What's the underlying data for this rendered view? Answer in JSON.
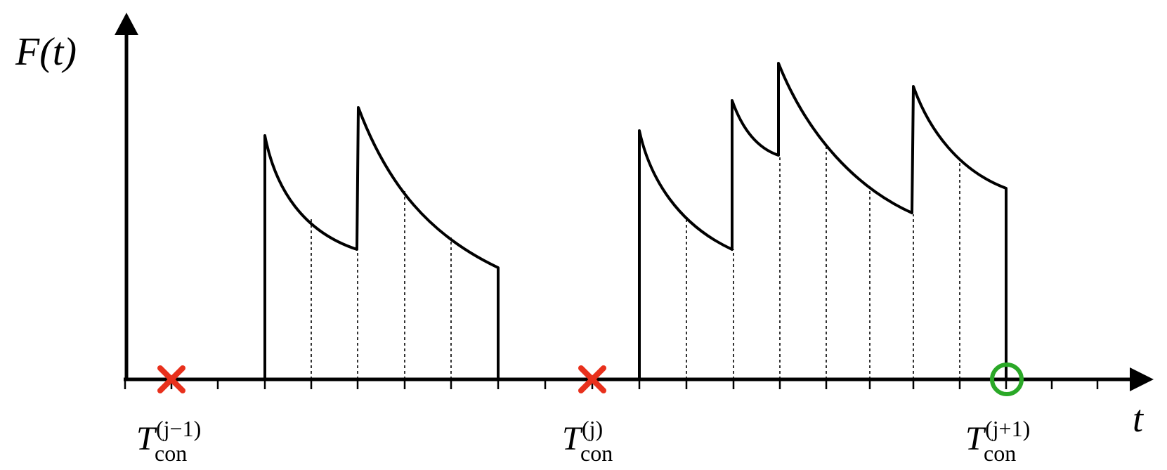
{
  "diagram": {
    "y_axis_label": "F(t)",
    "x_axis_label": "t",
    "markers": [
      {
        "kind": "cross",
        "color": "#e8301c",
        "main": "T",
        "sub": "con",
        "sup": "(j−1)"
      },
      {
        "kind": "cross",
        "color": "#e8301c",
        "main": "T",
        "sub": "con",
        "sup": "(j)"
      },
      {
        "kind": "circle",
        "color": "#2aa827",
        "main": "T",
        "sub": "con",
        "sup": "(j+1)"
      }
    ],
    "colors": {
      "curve": "#000000",
      "failure_marker": "#e8301c",
      "success_marker": "#2aa827"
    }
  }
}
